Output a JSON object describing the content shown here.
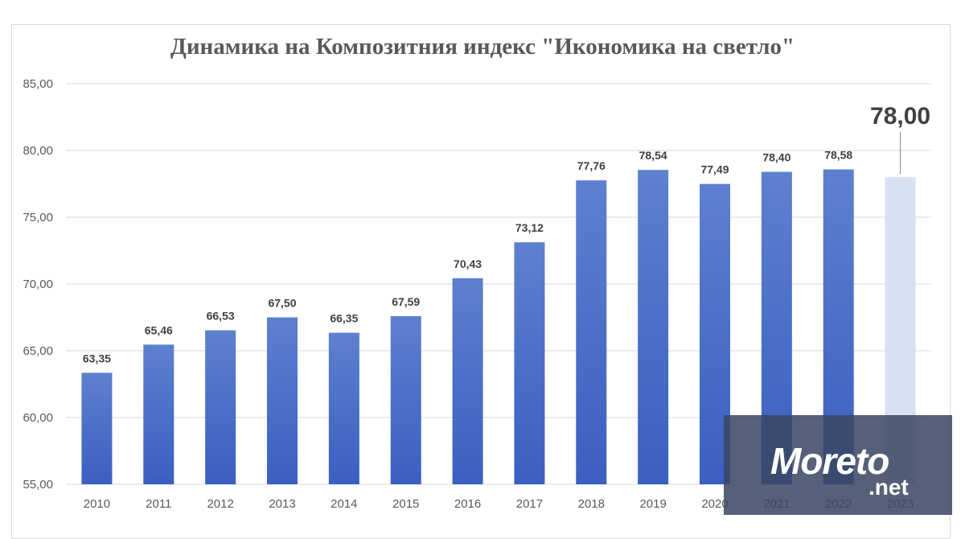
{
  "chart_data": {
    "type": "bar",
    "title": "Динамика на Композитния индекс \"Икономика на светло\"",
    "categories": [
      "2010",
      "2011",
      "2012",
      "2013",
      "2014",
      "2015",
      "2016",
      "2017",
      "2018",
      "2019",
      "2020",
      "2021",
      "2022",
      "2023"
    ],
    "values": [
      63.35,
      65.46,
      66.53,
      67.5,
      66.35,
      67.59,
      70.43,
      73.12,
      77.76,
      78.54,
      77.49,
      78.4,
      78.58,
      78.0
    ],
    "data_labels": [
      "63,35",
      "65,46",
      "66,53",
      "67,50",
      "66,35",
      "67,59",
      "70,43",
      "73,12",
      "77,76",
      "78,54",
      "77,49",
      "78,40",
      "78,58",
      "78,00"
    ],
    "highlighted_index": 13,
    "ylim": [
      55,
      85
    ],
    "yticks": [
      "55,00",
      "60,00",
      "65,00",
      "70,00",
      "75,00",
      "80,00",
      "85,00"
    ],
    "ytick_values": [
      55,
      60,
      65,
      70,
      75,
      80,
      85
    ],
    "grid": true,
    "colors": {
      "bar_top": "#5b7fce",
      "bar_bottom": "#3a5fc0",
      "highlight": "#d8e1f3",
      "grid": "#d9d9d9",
      "text": "#595959"
    }
  },
  "watermark": {
    "text": "Moreto",
    "suffix": ".net"
  }
}
